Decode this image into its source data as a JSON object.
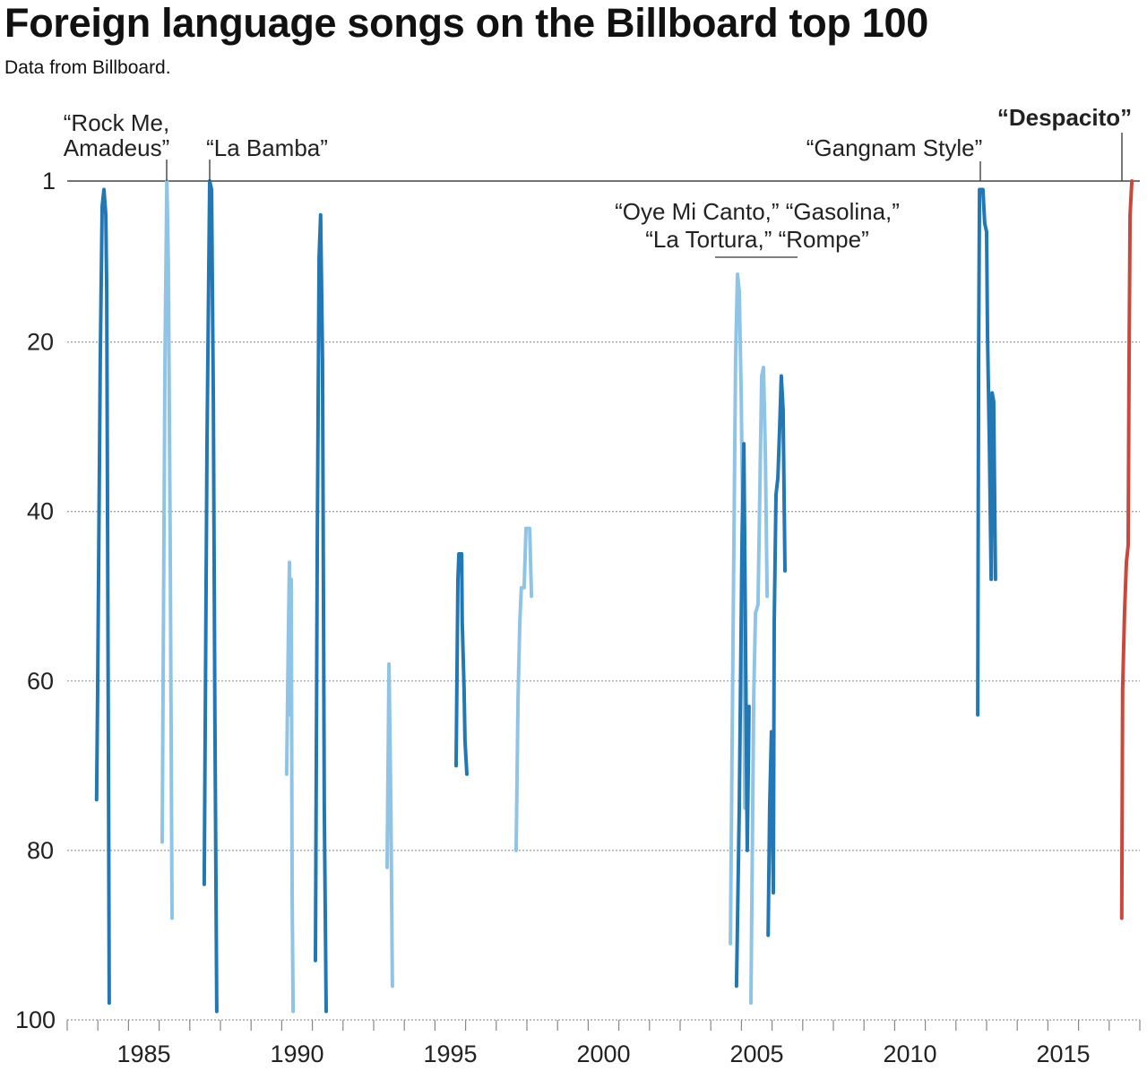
{
  "title": "Foreign language songs on the Billboard top 100",
  "subtitle": "Data from Billboard.",
  "chart_data": {
    "type": "line",
    "xlim": [
      1983,
      2018
    ],
    "ylim": [
      1,
      100
    ],
    "y_inverted": true,
    "y_ticks": [
      1,
      20,
      40,
      60,
      80,
      100
    ],
    "x_ticks": [
      1985,
      1990,
      1995,
      2000,
      2005,
      2010,
      2015
    ],
    "grid": "horizontal dotted",
    "colors": {
      "dark": "#2178b4",
      "light": "#8fc4e6",
      "highlight": "#c9483a"
    },
    "series": [
      {
        "color": "dark",
        "points": [
          [
            1983.96,
            74
          ],
          [
            1983.99,
            62
          ],
          [
            1984.08,
            22
          ],
          [
            1984.14,
            4
          ],
          [
            1984.2,
            2
          ],
          [
            1984.26,
            5
          ],
          [
            1984.29,
            14
          ],
          [
            1984.32,
            43
          ],
          [
            1984.35,
            75
          ],
          [
            1984.37,
            98
          ]
        ]
      },
      {
        "color": "light",
        "points": [
          [
            1986.1,
            79
          ],
          [
            1986.19,
            22
          ],
          [
            1986.25,
            1
          ],
          [
            1986.3,
            11
          ],
          [
            1986.36,
            43
          ],
          [
            1986.42,
            88
          ]
        ]
      },
      {
        "color": "dark",
        "points": [
          [
            1987.47,
            84
          ],
          [
            1987.56,
            32
          ],
          [
            1987.65,
            1
          ],
          [
            1987.71,
            2
          ],
          [
            1987.77,
            27
          ],
          [
            1987.82,
            64
          ],
          [
            1987.88,
            99
          ]
        ]
      },
      {
        "color": "light",
        "points": [
          [
            1990.16,
            71
          ],
          [
            1990.22,
            54
          ],
          [
            1990.25,
            46
          ],
          [
            1990.28,
            64
          ],
          [
            1990.31,
            48
          ],
          [
            1990.34,
            85
          ],
          [
            1990.37,
            99
          ]
        ]
      },
      {
        "color": "dark",
        "points": [
          [
            1991.1,
            93
          ],
          [
            1991.16,
            43
          ],
          [
            1991.22,
            10
          ],
          [
            1991.27,
            5
          ],
          [
            1991.33,
            22
          ],
          [
            1991.39,
            75
          ],
          [
            1991.45,
            99
          ]
        ]
      },
      {
        "color": "light",
        "points": [
          [
            1993.44,
            82
          ],
          [
            1993.5,
            58
          ],
          [
            1993.56,
            75
          ],
          [
            1993.61,
            96
          ]
        ]
      },
      {
        "color": "dark",
        "points": [
          [
            1995.69,
            70
          ],
          [
            1995.75,
            48
          ],
          [
            1995.78,
            45
          ],
          [
            1995.87,
            45
          ],
          [
            1995.89,
            53
          ],
          [
            1995.95,
            61
          ],
          [
            1995.98,
            67
          ],
          [
            1996.04,
            71
          ]
        ]
      },
      {
        "color": "light",
        "points": [
          [
            1997.65,
            80
          ],
          [
            1997.71,
            62
          ],
          [
            1997.77,
            53
          ],
          [
            1997.82,
            49
          ],
          [
            1997.91,
            49
          ],
          [
            1997.97,
            42
          ],
          [
            1998.09,
            42
          ],
          [
            1998.15,
            50
          ]
        ]
      },
      {
        "color": "light",
        "points": [
          [
            2004.64,
            91
          ],
          [
            2004.73,
            53
          ],
          [
            2004.81,
            22
          ],
          [
            2004.87,
            12
          ],
          [
            2004.93,
            14
          ],
          [
            2004.99,
            26
          ],
          [
            2005.05,
            43
          ],
          [
            2005.11,
            75
          ]
        ]
      },
      {
        "color": "dark",
        "points": [
          [
            2004.84,
            96
          ],
          [
            2004.93,
            75
          ],
          [
            2005.02,
            43
          ],
          [
            2005.08,
            32
          ],
          [
            2005.13,
            53
          ],
          [
            2005.19,
            80
          ],
          [
            2005.25,
            63
          ]
        ]
      },
      {
        "color": "light",
        "points": [
          [
            2005.31,
            98
          ],
          [
            2005.4,
            62
          ],
          [
            2005.46,
            52
          ],
          [
            2005.54,
            51
          ],
          [
            2005.6,
            38
          ],
          [
            2005.66,
            24
          ],
          [
            2005.72,
            23
          ],
          [
            2005.78,
            33
          ],
          [
            2005.84,
            50
          ]
        ]
      },
      {
        "color": "dark",
        "points": [
          [
            2005.87,
            90
          ],
          [
            2005.92,
            75
          ],
          [
            2005.98,
            66
          ],
          [
            2006.04,
            85
          ],
          [
            2006.07,
            53
          ],
          [
            2006.13,
            38
          ],
          [
            2006.19,
            36
          ],
          [
            2006.25,
            30
          ],
          [
            2006.3,
            24
          ],
          [
            2006.36,
            28
          ],
          [
            2006.42,
            47
          ]
        ]
      },
      {
        "color": "dark",
        "points": [
          [
            2012.71,
            64
          ],
          [
            2012.74,
            22
          ],
          [
            2012.77,
            2
          ],
          [
            2012.88,
            2
          ],
          [
            2012.94,
            6
          ],
          [
            2013.0,
            7
          ],
          [
            2013.03,
            19
          ],
          [
            2013.09,
            32
          ],
          [
            2013.15,
            48
          ],
          [
            2013.18,
            26
          ],
          [
            2013.23,
            27
          ],
          [
            2013.29,
            48
          ]
        ]
      },
      {
        "color": "highlight",
        "points": [
          [
            2017.41,
            88
          ],
          [
            2017.44,
            61
          ],
          [
            2017.5,
            52
          ],
          [
            2017.56,
            46
          ],
          [
            2017.62,
            44
          ],
          [
            2017.65,
            22
          ],
          [
            2017.68,
            5
          ],
          [
            2017.74,
            1
          ]
        ]
      }
    ],
    "annotations": [
      {
        "lines": [
          "“Rock Me,",
          "Amadeus”"
        ],
        "year": 1986.25,
        "bold": false
      },
      {
        "lines": [
          "“La Bamba”"
        ],
        "year": 1987.65,
        "bold": false
      },
      {
        "lines": [
          "“Oye Mi Canto,” “Gasolina,”",
          "“La Tortura,” “Rompe”"
        ],
        "year": 2005.5,
        "bold": false
      },
      {
        "lines": [
          "“Gangnam Style”"
        ],
        "year": 2012.8,
        "bold": false
      },
      {
        "lines": [
          "“Despacito”"
        ],
        "year": 2017.74,
        "bold": true
      }
    ]
  }
}
